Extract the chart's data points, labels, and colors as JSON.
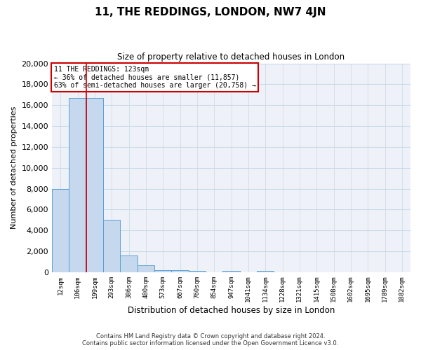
{
  "title": "11, THE REDDINGS, LONDON, NW7 4JN",
  "subtitle": "Size of property relative to detached houses in London",
  "xlabel": "Distribution of detached houses by size in London",
  "ylabel": "Number of detached properties",
  "footer_line1": "Contains HM Land Registry data © Crown copyright and database right 2024.",
  "footer_line2": "Contains public sector information licensed under the Open Government Licence v3.0.",
  "annotation_title": "11 THE REDDINGS: 123sqm",
  "annotation_line1": "← 36% of detached houses are smaller (11,857)",
  "annotation_line2": "63% of semi-detached houses are larger (20,758) →",
  "bar_color": "#c5d8ee",
  "bar_edge_color": "#5a9fd4",
  "vline_color": "#cc0000",
  "annotation_box_edge": "#cc0000",
  "grid_color": "#c8d8e8",
  "background_color": "#eef2f8",
  "categories": [
    "12sqm",
    "106sqm",
    "199sqm",
    "293sqm",
    "386sqm",
    "480sqm",
    "573sqm",
    "667sqm",
    "760sqm",
    "854sqm",
    "947sqm",
    "1041sqm",
    "1134sqm",
    "1228sqm",
    "1321sqm",
    "1415sqm",
    "1508sqm",
    "1602sqm",
    "1695sqm",
    "1789sqm",
    "1882sqm"
  ],
  "values": [
    8000,
    16700,
    16700,
    5000,
    1600,
    700,
    200,
    200,
    100,
    0,
    100,
    0,
    100,
    0,
    0,
    0,
    0,
    0,
    0,
    0,
    0
  ],
  "ylim": [
    0,
    20000
  ],
  "yticks": [
    0,
    2000,
    4000,
    6000,
    8000,
    10000,
    12000,
    14000,
    16000,
    18000,
    20000
  ],
  "vline_x": 1.5,
  "property_size_sqm": 123
}
